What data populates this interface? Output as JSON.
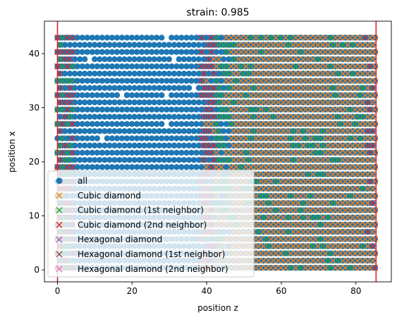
{
  "chart_data": {
    "type": "scatter",
    "title": "strain: 0.985",
    "xlabel": "position z",
    "ylabel": "position x",
    "xlim": [
      -3.5,
      89.5
    ],
    "ylim": [
      -2.2,
      46
    ],
    "xticks": [
      0,
      20,
      40,
      60,
      80
    ],
    "yticks": [
      0,
      10,
      20,
      30,
      40
    ],
    "grid": false,
    "legend_placement": "lower-left",
    "vlines": {
      "x": [
        0,
        85.4
      ],
      "color": "#d62728"
    },
    "lattice": {
      "z_min": 0,
      "z_max": 85.4,
      "x_min": 0.4,
      "x_max": 43.6,
      "amorphous_region": [
        4,
        40
      ],
      "interface_left": [
        0,
        4
      ],
      "interface_right": [
        38.5,
        46.5
      ],
      "crystal_region": [
        46.5,
        85.4
      ],
      "right_edge_band": [
        82,
        85.4
      ]
    },
    "series": [
      {
        "name": "all",
        "marker": "o",
        "color": "#1f77b4"
      },
      {
        "name": "Cubic diamond",
        "marker": "x",
        "color": "#ff7f0e"
      },
      {
        "name": "Cubic diamond (1st neighbor)",
        "marker": "x",
        "color": "#2ca02c"
      },
      {
        "name": "Cubic diamond (2nd neighbor)",
        "marker": "x",
        "color": "#d62728"
      },
      {
        "name": "Hexagonal diamond",
        "marker": "x",
        "color": "#9467bd"
      },
      {
        "name": "Hexagonal diamond (1st neighbor)",
        "marker": "x",
        "color": "#8c564b"
      },
      {
        "name": "Hexagonal diamond (2nd neighbor)",
        "marker": "x",
        "color": "#e377c2"
      }
    ]
  }
}
